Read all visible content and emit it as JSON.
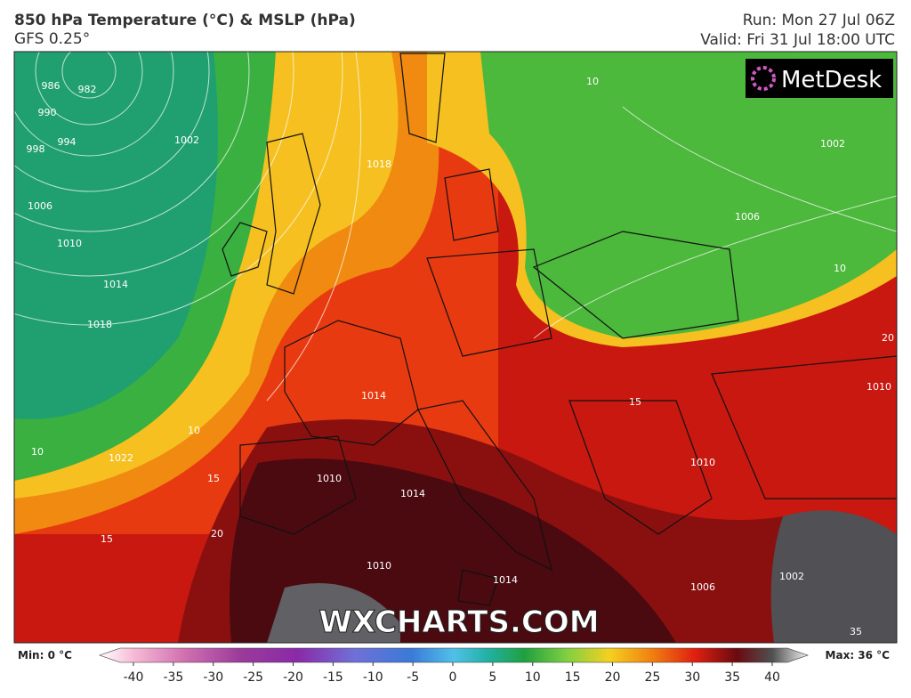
{
  "header": {
    "title": "850 hPa Temperature (°C) & MSLP (hPa)",
    "subtitle": "GFS 0.25°",
    "run": "Run: Mon 27 Jul 06Z",
    "valid": "Valid: Fri 31 Jul 18:00 UTC"
  },
  "logo": "MetDesk",
  "watermark": "WXCHARTS.COM",
  "map": {
    "labels": [
      "982",
      "986",
      "990",
      "994",
      "998",
      "1002",
      "1006",
      "1010",
      "1014",
      "1018",
      "1022",
      "1018",
      "1014",
      "1014",
      "1010",
      "1010",
      "1014",
      "1006",
      "1002",
      "1002",
      "1006",
      "1010",
      "1010",
      "10",
      "10",
      "10",
      "10",
      "15",
      "15",
      "15",
      "20",
      "20",
      "35"
    ]
  },
  "colorbar": {
    "min_label": "Min: 0 °C",
    "max_label": "Max: 36 °C",
    "ticks": [
      -40,
      -35,
      -30,
      -25,
      -20,
      -15,
      -10,
      -5,
      0,
      5,
      10,
      15,
      20,
      25,
      30,
      35,
      40
    ]
  }
}
